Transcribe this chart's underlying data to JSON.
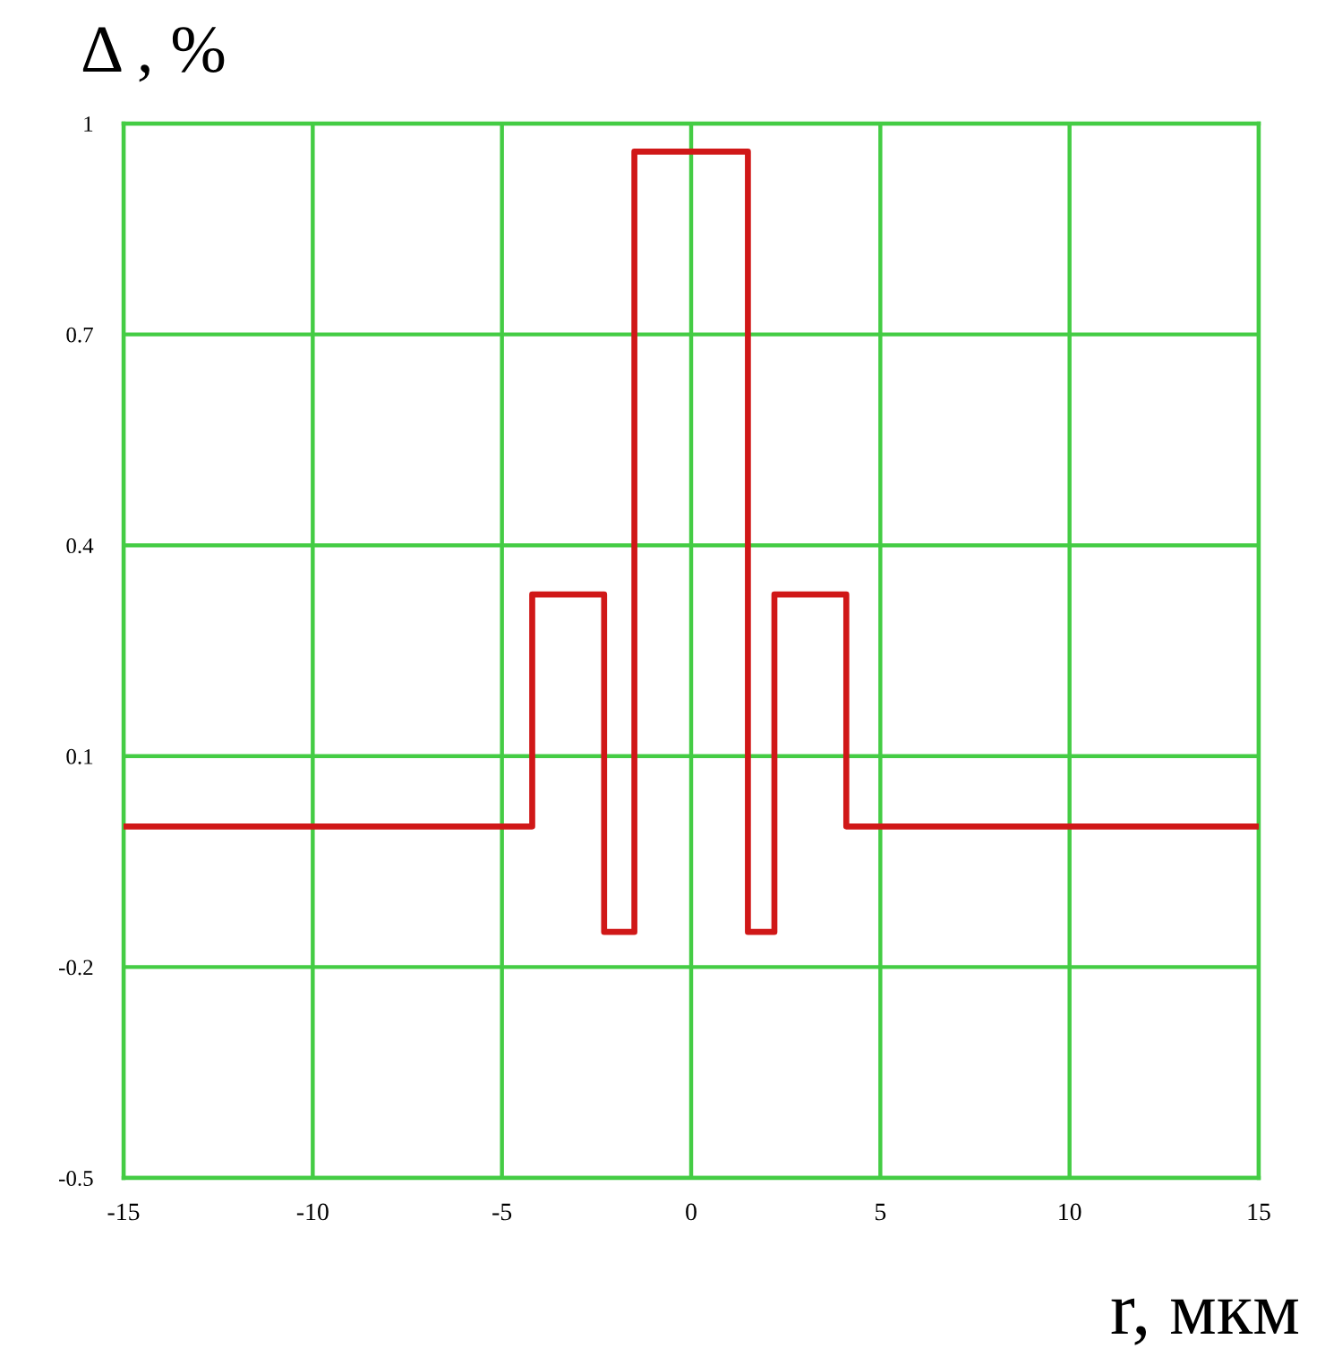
{
  "chart_data": {
    "type": "step",
    "xlabel": "r, мкм",
    "ylabel": "Δ , %",
    "x": [
      -15,
      -4.2,
      -2.3,
      -1.5,
      1.5,
      2.2,
      4.1,
      15
    ],
    "series": [
      {
        "color": "#d01818",
        "values": [
          0,
          0.33,
          -0.15,
          0.96,
          -0.15,
          0.33,
          0,
          0
        ]
      }
    ],
    "xlim": [
      -15,
      15
    ],
    "xticks": [
      -15,
      -10,
      -5,
      0,
      5,
      10,
      15
    ],
    "ylim": [
      -0.5,
      1
    ],
    "yticks": [
      -0.5,
      -0.2,
      0.1,
      0.4,
      0.7,
      1
    ],
    "grid": true,
    "marker": "none",
    "line_style": "solid"
  }
}
